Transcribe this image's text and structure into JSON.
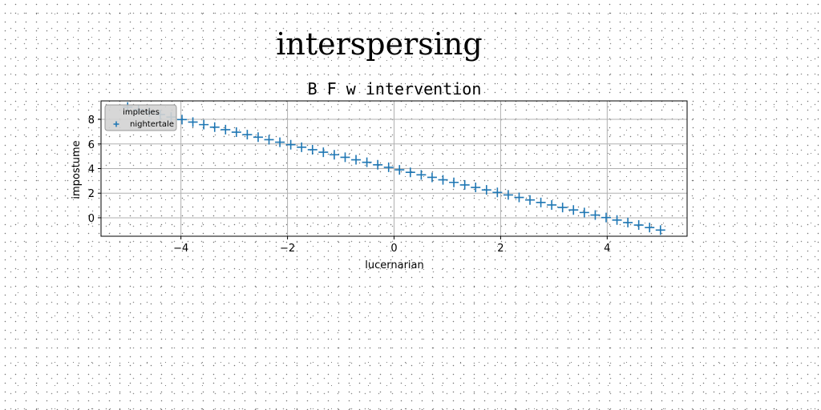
{
  "chart_data": {
    "type": "scatter",
    "suptitle": "interspersing",
    "title": "B F w intervention",
    "xlabel": "lucernarian",
    "ylabel": "impostume",
    "xlim": [
      -5.5,
      5.5
    ],
    "ylim": [
      -1.5,
      9.5
    ],
    "xticks": [
      -4,
      -2,
      0,
      2,
      4
    ],
    "yticks": [
      0,
      2,
      4,
      6,
      8
    ],
    "grid": true,
    "legend": {
      "title": "impleties",
      "placement": "upper left"
    },
    "series": [
      {
        "name": "nightertale",
        "marker": "+",
        "color": "#1f77b4",
        "x": [
          -5.0,
          -4.796,
          -4.592,
          -4.388,
          -4.184,
          -3.98,
          -3.776,
          -3.571,
          -3.367,
          -3.163,
          -2.959,
          -2.755,
          -2.551,
          -2.347,
          -2.143,
          -1.939,
          -1.735,
          -1.531,
          -1.327,
          -1.122,
          -0.918,
          -0.714,
          -0.51,
          -0.306,
          -0.102,
          0.102,
          0.306,
          0.51,
          0.714,
          0.918,
          1.122,
          1.327,
          1.531,
          1.735,
          1.939,
          2.143,
          2.347,
          2.551,
          2.755,
          2.959,
          3.163,
          3.367,
          3.571,
          3.776,
          3.98,
          4.184,
          4.388,
          4.592,
          4.796,
          5.0
        ],
        "y": [
          9.0,
          8.796,
          8.592,
          8.388,
          8.184,
          7.98,
          7.776,
          7.571,
          7.367,
          7.163,
          6.959,
          6.755,
          6.551,
          6.347,
          6.143,
          5.939,
          5.735,
          5.531,
          5.327,
          5.122,
          4.918,
          4.714,
          4.51,
          4.306,
          4.102,
          3.898,
          3.694,
          3.49,
          3.286,
          3.082,
          2.878,
          2.673,
          2.469,
          2.265,
          2.061,
          1.857,
          1.653,
          1.449,
          1.245,
          1.041,
          0.837,
          0.633,
          0.429,
          0.224,
          0.02,
          -0.184,
          -0.388,
          -0.592,
          -0.796,
          -1.0
        ]
      }
    ]
  }
}
